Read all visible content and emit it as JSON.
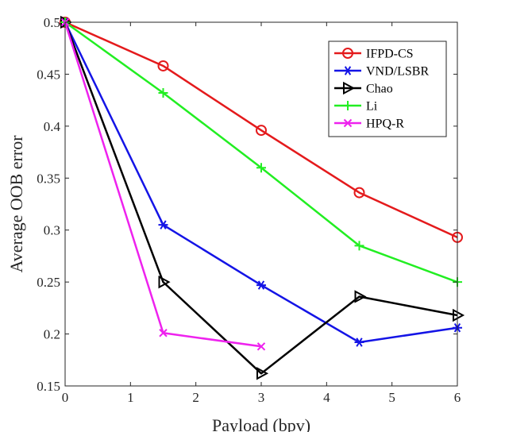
{
  "chart_data": {
    "type": "line",
    "title": "",
    "xlabel": "Payload (bpv)",
    "ylabel": "Average OOB error",
    "xlim": [
      0,
      6
    ],
    "ylim": [
      0.15,
      0.5
    ],
    "xticks": [
      0,
      1,
      2,
      3,
      4,
      5,
      6
    ],
    "xtick_labels": [
      "0",
      "1",
      "2",
      "3",
      "4",
      "5",
      "6"
    ],
    "yticks": [
      0.15,
      0.2,
      0.25,
      0.3,
      0.35,
      0.4,
      0.45,
      0.5
    ],
    "ytick_labels": [
      "0.15",
      "0.2",
      "0.25",
      "0.3",
      "0.35",
      "0.4",
      "0.45",
      "0.5"
    ],
    "grid": false,
    "legend_position": "top-right",
    "series": [
      {
        "name": "IFPD-CS",
        "color": "#e41a1c",
        "marker": "circle",
        "x": [
          0,
          1.5,
          3,
          4.5,
          6
        ],
        "y": [
          0.5,
          0.458,
          0.396,
          0.336,
          0.293
        ]
      },
      {
        "name": "VND/LSBR",
        "color": "#1414e6",
        "marker": "asterisk",
        "x": [
          0,
          1.5,
          3,
          4.5,
          6
        ],
        "y": [
          0.5,
          0.305,
          0.247,
          0.192,
          0.206
        ]
      },
      {
        "name": "Chao",
        "color": "#000000",
        "marker": "triangle-right",
        "x": [
          0,
          1.5,
          3,
          4.5,
          6
        ],
        "y": [
          0.5,
          0.25,
          0.162,
          0.236,
          0.218
        ]
      },
      {
        "name": "Li",
        "color": "#22ee22",
        "marker": "plus",
        "x": [
          0,
          1.5,
          3,
          4.5,
          6
        ],
        "y": [
          0.5,
          0.432,
          0.36,
          0.285,
          0.25
        ]
      },
      {
        "name": "HPQ-R",
        "color": "#ee22ee",
        "marker": "x",
        "x": [
          0,
          1.5,
          3
        ],
        "y": [
          0.5,
          0.201,
          0.188
        ]
      }
    ]
  }
}
